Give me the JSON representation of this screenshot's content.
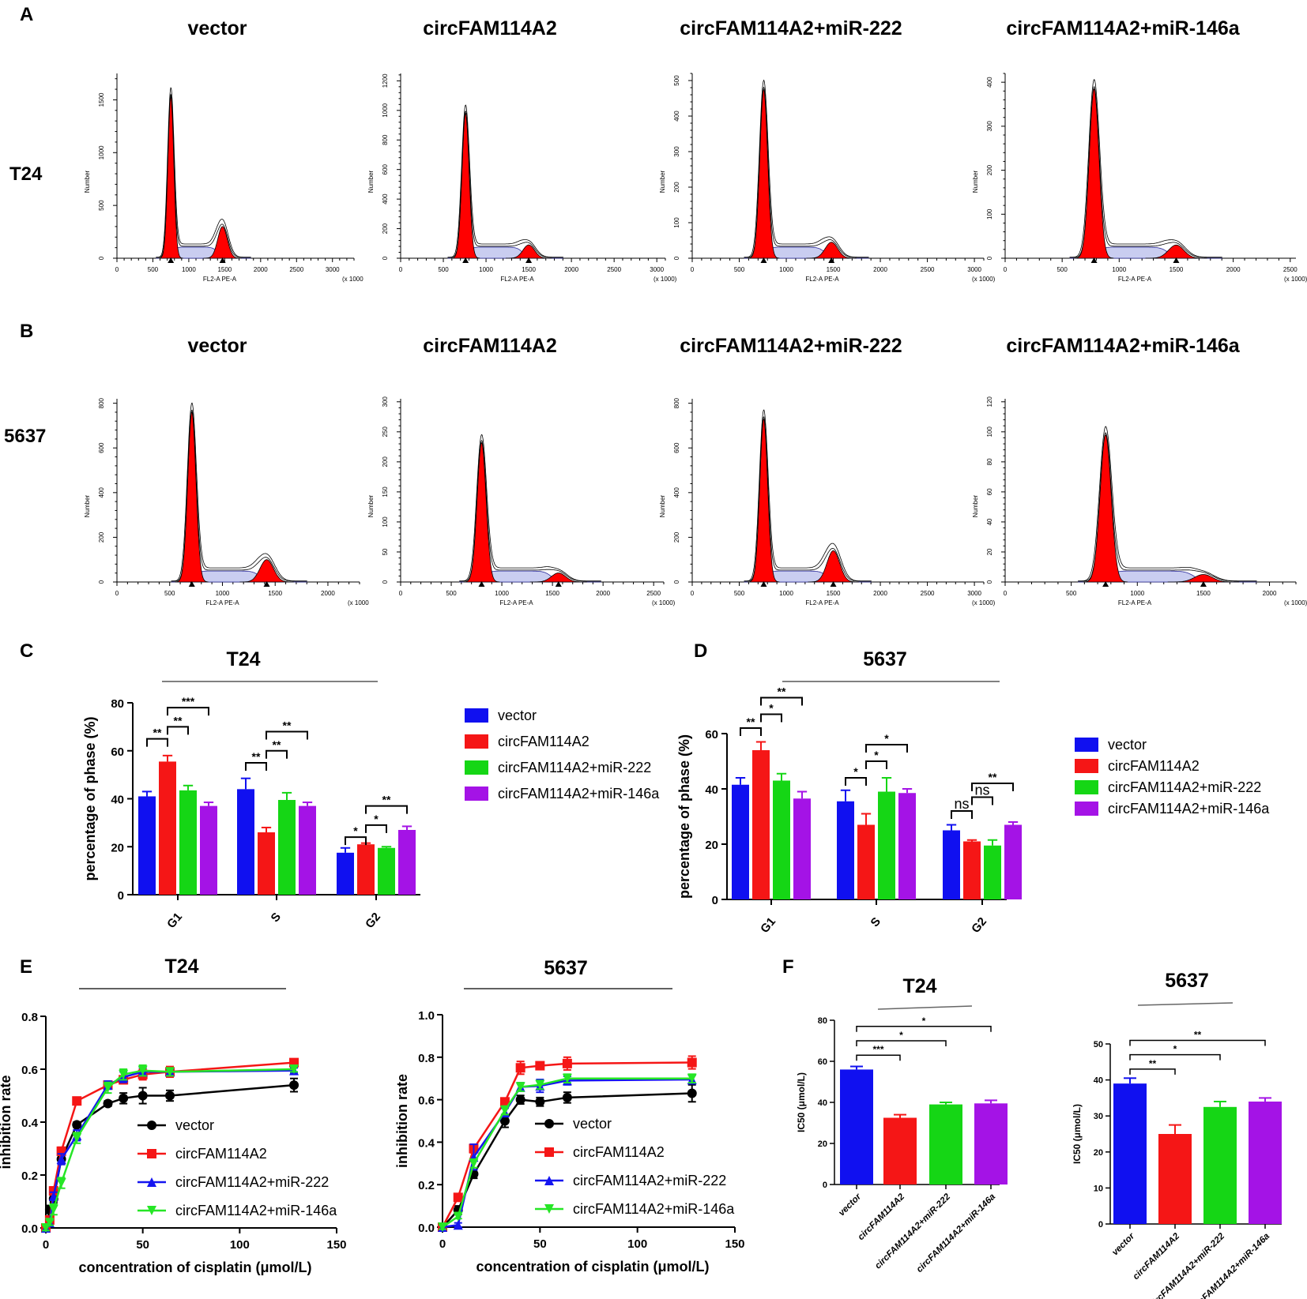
{
  "figure": {
    "panel_labels": [
      "A",
      "B",
      "C",
      "D",
      "E",
      "F"
    ],
    "row_labels": [
      "T24",
      "5637"
    ],
    "groups": [
      "vector",
      "circFAM114A2",
      "circFAM114A2+miR-222",
      "circFAM114A2+miR-146a"
    ],
    "colors": {
      "vector": "#1010f0",
      "circFAM114A2": "#f51616",
      "miR222": "#15d615",
      "miR146a": "#a413e6",
      "line_vector": "#000000",
      "line_circ": "#f51616",
      "line_miR222": "#1515f0",
      "line_miR146a": "#26e626",
      "histo_fill": "#ff0000"
    },
    "flow_axis_label": "FL2-A PE-A",
    "flow_y_label": "Number",
    "scale_short": "(x 1000",
    "scale_full": "(x 1000)"
  },
  "chart_data": [
    {
      "id": "A1",
      "type": "histogram",
      "panel": "A",
      "title": "vector",
      "yticks": [
        "0",
        "500",
        "1000",
        "1500"
      ],
      "ymax": 1750,
      "xticks": [
        "0",
        "500",
        "1000",
        "1500",
        "2000",
        "2500",
        "3000"
      ],
      "xmax": 3300,
      "g1_peak": 750,
      "g2_peak": 1470,
      "g1_height": 1530,
      "g2_height": 300,
      "scale": "(x 1000"
    },
    {
      "id": "A2",
      "type": "histogram",
      "panel": "A",
      "title": "circFAM114A2",
      "yticks": [
        "0",
        "200",
        "400",
        "600",
        "800",
        "1000",
        "1200"
      ],
      "ymax": 1250,
      "xticks": [
        "0",
        "500",
        "1000",
        "1500",
        "2000",
        "2500",
        "3000"
      ],
      "xmax": 3100,
      "g1_peak": 760,
      "g2_peak": 1500,
      "g1_height": 980,
      "g2_height": 90,
      "scale": "(x 1000)"
    },
    {
      "id": "A3",
      "type": "histogram",
      "panel": "A",
      "title": "circFAM114A2+miR-222",
      "yticks": [
        "0",
        "100",
        "200",
        "300",
        "400",
        "500"
      ],
      "ymax": 520,
      "xticks": [
        "0",
        "500",
        "1000",
        "1500",
        "2000",
        "2500",
        "3000"
      ],
      "xmax": 3100,
      "g1_peak": 760,
      "g2_peak": 1480,
      "g1_height": 475,
      "g2_height": 45,
      "scale": "(x 1000)"
    },
    {
      "id": "A4",
      "type": "histogram",
      "panel": "A",
      "title": "circFAM114A2+miR-146a",
      "yticks": [
        "0",
        "100",
        "200",
        "300",
        "400"
      ],
      "ymax": 420,
      "xticks": [
        "0",
        "500",
        "1000",
        "1500",
        "2000",
        "2500"
      ],
      "xmax": 2550,
      "g1_peak": 780,
      "g2_peak": 1500,
      "g1_height": 385,
      "g2_height": 30,
      "scale": "(x 1000)"
    },
    {
      "id": "B1",
      "type": "histogram",
      "panel": "B",
      "title": "vector",
      "yticks": [
        "0",
        "200",
        "400",
        "600",
        "800"
      ],
      "ymax": 820,
      "xticks": [
        "0",
        "500",
        "1000",
        "1500",
        "2000"
      ],
      "xmax": 2300,
      "g1_peak": 710,
      "g2_peak": 1420,
      "g1_height": 760,
      "g2_height": 100,
      "scale": "(x 1000"
    },
    {
      "id": "B2",
      "type": "histogram",
      "panel": "B",
      "title": "circFAM114A2",
      "yticks": [
        "0",
        "50",
        "100",
        "150",
        "200",
        "250",
        "300"
      ],
      "ymax": 305,
      "xticks": [
        "0",
        "500",
        "1000",
        "1500",
        "2000",
        "2500"
      ],
      "xmax": 2600,
      "g1_peak": 800,
      "g2_peak": 1560,
      "g1_height": 232,
      "g2_height": 15,
      "scale": "(x 1000)"
    },
    {
      "id": "B3",
      "type": "histogram",
      "panel": "B",
      "title": "circFAM114A2+miR-222",
      "yticks": [
        "0",
        "200",
        "400",
        "600",
        "800"
      ],
      "ymax": 820,
      "xticks": [
        "0",
        "500",
        "1000",
        "1500",
        "2000",
        "2500",
        "3000"
      ],
      "xmax": 3100,
      "g1_peak": 760,
      "g2_peak": 1500,
      "g1_height": 730,
      "g2_height": 140,
      "scale": "(x 1000)"
    },
    {
      "id": "B4",
      "type": "histogram",
      "panel": "B",
      "title": "circFAM114A2+miR-146a",
      "yticks": [
        "0",
        "20",
        "40",
        "60",
        "80",
        "100",
        "120"
      ],
      "ymax": 122,
      "xticks": [
        "0",
        "500",
        "1000",
        "1500",
        "2000"
      ],
      "xmax": 2200,
      "g1_peak": 760,
      "g2_peak": 1500,
      "g1_height": 98,
      "g2_height": 5,
      "scale": "(x 1000)"
    },
    {
      "id": "C",
      "type": "bar",
      "panel": "C",
      "title": "T24",
      "ylabel": "percentage of phase (%)",
      "ylim": [
        0,
        80
      ],
      "yticks": [
        "0",
        "20",
        "40",
        "60",
        "80"
      ],
      "categories": [
        "G1",
        "S",
        "G2"
      ],
      "series": [
        {
          "name": "vector",
          "values": [
            41,
            44,
            17.5
          ],
          "errors": [
            2,
            4.5,
            2
          ]
        },
        {
          "name": "circFAM114A2",
          "values": [
            55.5,
            26,
            21
          ],
          "errors": [
            2.5,
            2,
            0.5
          ]
        },
        {
          "name": "circFAM114A2+miR-222",
          "values": [
            43.5,
            39.5,
            19.5
          ],
          "errors": [
            2,
            3,
            0.5
          ]
        },
        {
          "name": "circFAM114A2+miR-146a",
          "values": [
            37,
            37,
            27
          ],
          "errors": [
            1.5,
            1.5,
            1.5
          ]
        }
      ],
      "sig": [
        {
          "c": 0,
          "a": 0,
          "b": 1,
          "y": 65,
          "label": "**"
        },
        {
          "c": 0,
          "a": 1,
          "b": 2,
          "y": 70,
          "label": "**"
        },
        {
          "c": 0,
          "a": 1,
          "b": 3,
          "y": 78,
          "label": "***"
        },
        {
          "c": 1,
          "a": 0,
          "b": 1,
          "y": 55,
          "label": "**"
        },
        {
          "c": 1,
          "a": 1,
          "b": 2,
          "y": 60,
          "label": "**"
        },
        {
          "c": 1,
          "a": 1,
          "b": 3,
          "y": 68,
          "label": "**"
        },
        {
          "c": 2,
          "a": 0,
          "b": 1,
          "y": 24,
          "label": "*"
        },
        {
          "c": 2,
          "a": 1,
          "b": 2,
          "y": 29,
          "label": "*"
        },
        {
          "c": 2,
          "a": 1,
          "b": 3,
          "y": 37,
          "label": "**"
        }
      ],
      "legend": [
        "vector",
        "circFAM114A2",
        "circFAM114A2+miR-222",
        "circFAM114A2+miR-146a"
      ]
    },
    {
      "id": "D",
      "type": "bar",
      "panel": "D",
      "title": "5637",
      "ylabel": "percentage of phase (%)",
      "ylim": [
        0,
        60
      ],
      "yticks": [
        "0",
        "20",
        "40",
        "60"
      ],
      "categories": [
        "G1",
        "S",
        "G2"
      ],
      "series": [
        {
          "name": "vector",
          "values": [
            41.5,
            35.5,
            25
          ],
          "errors": [
            2.5,
            4,
            2
          ]
        },
        {
          "name": "circFAM114A2",
          "values": [
            54,
            27,
            21
          ],
          "errors": [
            3,
            4,
            0.5
          ]
        },
        {
          "name": "circFAM114A2+miR-222",
          "values": [
            43,
            39,
            19.5
          ],
          "errors": [
            2.5,
            5,
            2
          ]
        },
        {
          "name": "circFAM114A2+miR-146a",
          "values": [
            36.5,
            38.5,
            27
          ],
          "errors": [
            2.5,
            1.5,
            1
          ]
        }
      ],
      "sig": [
        {
          "c": 0,
          "a": 0,
          "b": 1,
          "y": 62,
          "label": "**"
        },
        {
          "c": 0,
          "a": 1,
          "b": 2,
          "y": 67,
          "label": "*"
        },
        {
          "c": 0,
          "a": 1,
          "b": 3,
          "y": 73,
          "label": "**"
        },
        {
          "c": 1,
          "a": 0,
          "b": 1,
          "y": 44,
          "label": "*"
        },
        {
          "c": 1,
          "a": 1,
          "b": 2,
          "y": 50,
          "label": "*"
        },
        {
          "c": 1,
          "a": 1,
          "b": 3,
          "y": 56,
          "label": "*"
        },
        {
          "c": 2,
          "a": 0,
          "b": 1,
          "y": 32,
          "label": "ns"
        },
        {
          "c": 2,
          "a": 1,
          "b": 2,
          "y": 37,
          "label": "ns"
        },
        {
          "c": 2,
          "a": 1,
          "b": 3,
          "y": 42,
          "label": "**"
        }
      ],
      "legend": [
        "vector",
        "circFAM114A2",
        "circFAM114A2+miR-222",
        "circFAM114A2+miR-146a"
      ]
    },
    {
      "id": "E1",
      "type": "line",
      "panel": "E",
      "title": "T24",
      "xlabel": "concentration of cisplatin (μmol/L)",
      "ylabel": "inhibition rate",
      "xlim": [
        0,
        150
      ],
      "ylim": [
        0,
        0.8
      ],
      "xticks": [
        "0",
        "50",
        "100",
        "150"
      ],
      "yticks": [
        "0.0",
        "0.2",
        "0.4",
        "0.6",
        "0.8"
      ],
      "x": [
        0,
        2,
        4,
        8,
        16,
        32,
        40,
        50,
        64,
        128
      ],
      "series": [
        {
          "name": "vector",
          "marker": "circle",
          "values": [
            0.0,
            0.07,
            0.11,
            0.26,
            0.39,
            0.47,
            0.49,
            0.5,
            0.5,
            0.54
          ],
          "errors": [
            0.01,
            0.015,
            0.015,
            0.02,
            0.01,
            0.01,
            0.02,
            0.03,
            0.02,
            0.025
          ]
        },
        {
          "name": "circFAM114A2",
          "marker": "square",
          "values": [
            0.0,
            0.03,
            0.14,
            0.29,
            0.48,
            0.54,
            0.56,
            0.58,
            0.59,
            0.625
          ],
          "errors": [
            0.01,
            0.01,
            0.015,
            0.015,
            0.01,
            0.01,
            0.015,
            0.02,
            0.02,
            0.01
          ]
        },
        {
          "name": "circFAM114A2+miR-222",
          "marker": "triangle-up",
          "values": [
            0.0,
            0.02,
            0.12,
            0.26,
            0.35,
            0.54,
            0.57,
            0.59,
            0.59,
            0.595
          ],
          "errors": [
            0.01,
            0.01,
            0.015,
            0.02,
            0.02,
            0.015,
            0.02,
            0.015,
            0.01,
            0.01
          ]
        },
        {
          "name": "circFAM114A2+miR-146a",
          "marker": "triangle-down",
          "values": [
            0.0,
            0.02,
            0.07,
            0.17,
            0.34,
            0.53,
            0.58,
            0.595,
            0.59,
            0.6
          ],
          "errors": [
            0.01,
            0.01,
            0.02,
            0.02,
            0.02,
            0.02,
            0.02,
            0.02,
            0.015,
            0.01
          ]
        }
      ],
      "legend": [
        "vector",
        "circFAM114A2",
        "circFAM114A2+miR-222",
        "circFAM114A2+miR-146a"
      ]
    },
    {
      "id": "E2",
      "type": "line",
      "panel": "E",
      "title": "5637",
      "xlabel": "concentration of cisplatin (μmol/L)",
      "ylabel": "inhibition rate",
      "xlim": [
        0,
        150
      ],
      "ylim": [
        0,
        1.0
      ],
      "xticks": [
        "0",
        "50",
        "100",
        "150"
      ],
      "yticks": [
        "0.0",
        "0.2",
        "0.4",
        "0.6",
        "0.8",
        "1.0"
      ],
      "x": [
        0,
        8,
        16,
        32,
        40,
        50,
        64,
        128
      ],
      "series": [
        {
          "name": "vector",
          "marker": "circle",
          "values": [
            0.0,
            0.08,
            0.25,
            0.5,
            0.6,
            0.59,
            0.61,
            0.63
          ],
          "errors": [
            0.01,
            0.02,
            0.02,
            0.03,
            0.02,
            0.02,
            0.025,
            0.04
          ]
        },
        {
          "name": "circFAM114A2",
          "marker": "square",
          "values": [
            0.0,
            0.14,
            0.37,
            0.59,
            0.75,
            0.76,
            0.77,
            0.775
          ],
          "errors": [
            0.01,
            0.01,
            0.02,
            0.01,
            0.03,
            0.015,
            0.03,
            0.03
          ]
        },
        {
          "name": "circFAM114A2+miR-222",
          "marker": "triangle-up",
          "values": [
            0.0,
            0.01,
            0.33,
            0.54,
            0.66,
            0.665,
            0.69,
            0.695
          ],
          "errors": [
            0.01,
            0.01,
            0.06,
            0.02,
            0.02,
            0.03,
            0.02,
            0.02
          ]
        },
        {
          "name": "circFAM114A2+miR-146a",
          "marker": "triangle-down",
          "values": [
            0.0,
            0.05,
            0.3,
            0.55,
            0.66,
            0.67,
            0.7,
            0.7
          ],
          "errors": [
            0.01,
            0.01,
            0.02,
            0.02,
            0.02,
            0.02,
            0.02,
            0.02
          ]
        }
      ],
      "legend": [
        "vector",
        "circFAM114A2",
        "circFAM114A2+miR-222",
        "circFAM114A2+miR-146a"
      ]
    },
    {
      "id": "F1",
      "type": "bar",
      "panel": "F",
      "title": "T24",
      "ylabel": "IC50 (μmol/L)",
      "ylim": [
        0,
        80
      ],
      "yticks": [
        "0",
        "20",
        "40",
        "60",
        "80"
      ],
      "categories": [
        "vector",
        "circFAM114A2",
        "circFAM114A2+miR-222",
        "circFAM114A2+miR-146a"
      ],
      "values": [
        56,
        32.5,
        39,
        39.5
      ],
      "errors": [
        1.5,
        1.5,
        1,
        1.5
      ],
      "sig": [
        {
          "a": 0,
          "b": 1,
          "y": 63,
          "label": "***"
        },
        {
          "a": 0,
          "b": 2,
          "y": 70,
          "label": "*"
        },
        {
          "a": 0,
          "b": 3,
          "y": 77,
          "label": "*"
        }
      ]
    },
    {
      "id": "F2",
      "type": "bar",
      "panel": "F",
      "title": "5637",
      "ylabel": "IC50 (μmol/L)",
      "ylim": [
        0,
        50
      ],
      "yticks": [
        "0",
        "10",
        "20",
        "30",
        "40",
        "50"
      ],
      "categories": [
        "vector",
        "circFAM114A2",
        "circFAM114A2+miR-222",
        "circFAM114A2+miR-146a"
      ],
      "values": [
        39,
        25,
        32.5,
        34
      ],
      "errors": [
        1.5,
        2.5,
        1.5,
        1
      ],
      "sig": [
        {
          "a": 0,
          "b": 1,
          "y": 43,
          "label": "**"
        },
        {
          "a": 0,
          "b": 2,
          "y": 47,
          "label": "*"
        },
        {
          "a": 0,
          "b": 3,
          "y": 51,
          "label": "**"
        }
      ]
    }
  ]
}
